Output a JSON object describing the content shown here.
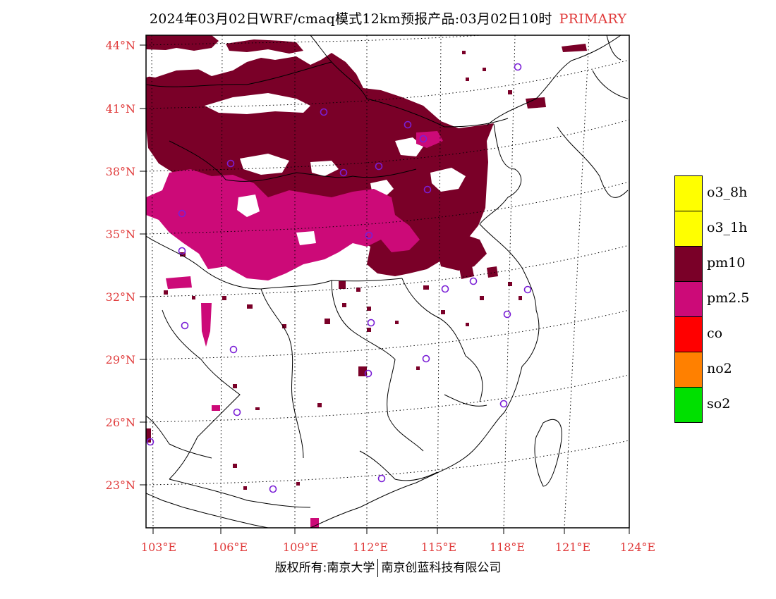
{
  "title": {
    "main": "2024年03月02日WRF/cmaq模式12km预报产品:03月02日10时",
    "pollutant": "PRIMARY"
  },
  "axes": {
    "lat_labels": [
      "44°N",
      "41°N",
      "38°N",
      "35°N",
      "32°N",
      "29°N",
      "26°N",
      "23°N"
    ],
    "lon_labels": [
      "103°E",
      "106°E",
      "109°E",
      "112°E",
      "115°E",
      "118°E",
      "121°E",
      "124°E"
    ]
  },
  "legend": {
    "items": [
      {
        "label": "o3_8h",
        "color": "#ffff00"
      },
      {
        "label": "o3_1h",
        "color": "#ffff00"
      },
      {
        "label": "pm10",
        "color": "#7a0028"
      },
      {
        "label": "pm2.5",
        "color": "#cc0a78"
      },
      {
        "label": "co",
        "color": "#ff0000"
      },
      {
        "label": "no2",
        "color": "#ff8000"
      },
      {
        "label": "so2",
        "color": "#00e000"
      }
    ]
  },
  "colors": {
    "pm10": "#7a0028",
    "pm25": "#cc0a78",
    "station": "#7a1fd6",
    "axis_label": "#e03a3a"
  },
  "copyright": {
    "left": "版权所有:南京大学",
    "right": "南京创蓝科技有限公司"
  }
}
